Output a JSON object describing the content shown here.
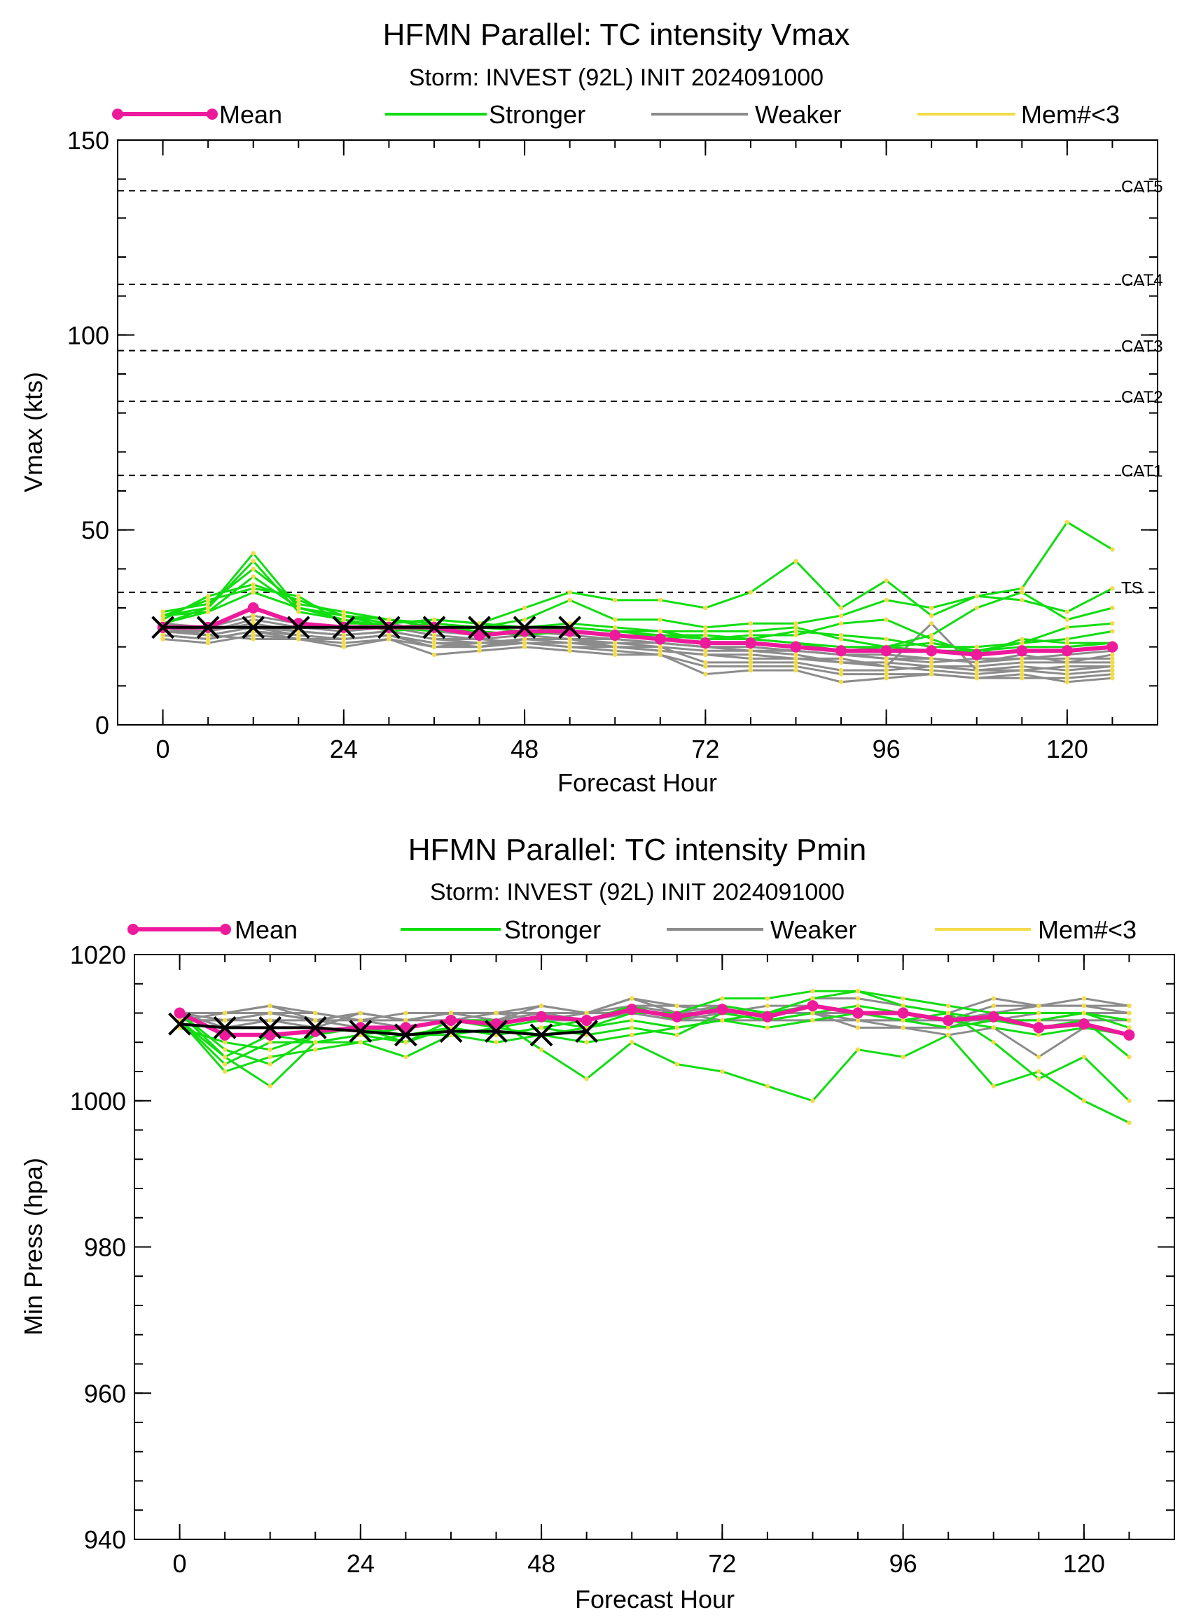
{
  "colors": {
    "mean": "#ee1a9c",
    "stronger": "#11dd11",
    "weaker": "#8c8c8c",
    "mem": "#f2dc4a",
    "observed": "#000000",
    "category_label": "#3355ee"
  },
  "legend": [
    {
      "label": "Mean",
      "style": "mean"
    },
    {
      "label": "Stronger",
      "style": "stronger"
    },
    {
      "label": "Weaker",
      "style": "weaker"
    },
    {
      "label": "Mem#<3",
      "style": "mem"
    }
  ],
  "chart_data": [
    {
      "type": "line",
      "title": "HFMN Parallel: TC intensity Vmax",
      "subtitle": "Storm: INVEST (92L) INIT 2024091000",
      "xlabel": "Forecast Hour",
      "ylabel": "Vmax (kts)",
      "xlim": [
        -6,
        132
      ],
      "ylim": [
        0,
        150
      ],
      "xticks": [
        0,
        24,
        48,
        72,
        96,
        120
      ],
      "yticks": [
        0,
        50,
        100,
        150
      ],
      "ytick_labels": [
        "0",
        "50",
        "100",
        "150"
      ],
      "yminor_step": 10,
      "grid": false,
      "legend_position": "top",
      "thresholds": [
        {
          "label": "CAT5",
          "value": 137
        },
        {
          "label": "CAT4",
          "value": 113
        },
        {
          "label": "CAT3",
          "value": 96
        },
        {
          "label": "CAT2",
          "value": 83
        },
        {
          "label": "CAT1",
          "value": 64
        },
        {
          "label": "TS",
          "value": 34
        }
      ],
      "x": [
        0,
        6,
        12,
        18,
        24,
        30,
        36,
        42,
        48,
        54,
        60,
        66,
        72,
        78,
        84,
        90,
        96,
        102,
        108,
        114,
        120,
        126
      ],
      "series": [
        {
          "name": "Mean",
          "style": "mean",
          "values": [
            25,
            25,
            30,
            26,
            25,
            25,
            25,
            23,
            24,
            24,
            23,
            22,
            21,
            21,
            20,
            19,
            19,
            19,
            18,
            19,
            19,
            20
          ]
        },
        {
          "name": "Observed",
          "style": "observed",
          "x": [
            0,
            6,
            12,
            18,
            24,
            30,
            36,
            42,
            48,
            54
          ],
          "values": [
            25,
            25,
            25,
            25,
            25,
            25,
            25,
            25,
            25,
            25
          ]
        },
        {
          "style": "stronger",
          "values": [
            28,
            30,
            44,
            30,
            28,
            26,
            27,
            26,
            30,
            34,
            32,
            32,
            30,
            34,
            42,
            30,
            37,
            28,
            33,
            35,
            52,
            45
          ]
        },
        {
          "style": "stronger",
          "values": [
            27,
            33,
            36,
            32,
            28,
            27,
            26,
            25,
            27,
            32,
            27,
            27,
            25,
            26,
            26,
            28,
            32,
            30,
            33,
            32,
            29,
            35
          ]
        },
        {
          "style": "stronger",
          "values": [
            26,
            29,
            38,
            30,
            27,
            25,
            24,
            25,
            24,
            25,
            24,
            24,
            24,
            24,
            25,
            22,
            20,
            21,
            19,
            21,
            25,
            26
          ]
        },
        {
          "style": "stronger",
          "values": [
            29,
            31,
            40,
            31,
            29,
            27,
            25,
            24,
            23,
            24,
            23,
            22,
            23,
            22,
            21,
            19,
            20,
            23,
            30,
            34,
            27,
            30
          ]
        },
        {
          "style": "stronger",
          "values": [
            28,
            32,
            35,
            33,
            26,
            26,
            27,
            26,
            25,
            26,
            25,
            24,
            22,
            23,
            23,
            26,
            27,
            22,
            18,
            22,
            21,
            21
          ]
        },
        {
          "style": "stronger",
          "values": [
            26,
            30,
            42,
            29,
            27,
            24,
            25,
            24,
            23,
            25,
            24,
            23,
            23,
            22,
            24,
            23,
            22,
            20,
            20,
            21,
            22,
            24
          ]
        },
        {
          "style": "stronger",
          "values": [
            28,
            29,
            34,
            30,
            28,
            25,
            26,
            25,
            24,
            24,
            23,
            23,
            22,
            22,
            21,
            20,
            20,
            19,
            19,
            20,
            20,
            21
          ]
        },
        {
          "style": "weaker",
          "values": [
            24,
            23,
            22,
            22,
            21,
            22,
            20,
            21,
            22,
            22,
            21,
            21,
            20,
            19,
            19,
            18,
            17,
            17,
            16,
            17,
            18,
            19
          ]
        },
        {
          "style": "weaker",
          "values": [
            23,
            22,
            24,
            22,
            22,
            23,
            21,
            21,
            21,
            21,
            20,
            19,
            18,
            18,
            17,
            16,
            16,
            15,
            15,
            16,
            16,
            16
          ]
        },
        {
          "style": "weaker",
          "values": [
            25,
            23,
            25,
            24,
            23,
            24,
            22,
            22,
            21,
            20,
            20,
            20,
            16,
            16,
            16,
            14,
            14,
            15,
            14,
            14,
            15,
            15
          ]
        },
        {
          "style": "weaker",
          "values": [
            22,
            21,
            23,
            22,
            20,
            22,
            18,
            19,
            20,
            19,
            18,
            18,
            13,
            14,
            14,
            11,
            12,
            13,
            12,
            13,
            11,
            12
          ]
        },
        {
          "style": "weaker",
          "values": [
            23,
            22,
            24,
            23,
            22,
            23,
            20,
            20,
            22,
            22,
            20,
            19,
            18,
            17,
            17,
            17,
            15,
            14,
            13,
            14,
            13,
            14
          ]
        },
        {
          "style": "weaker",
          "values": [
            24,
            24,
            26,
            24,
            23,
            24,
            22,
            21,
            22,
            21,
            21,
            20,
            19,
            19,
            18,
            16,
            15,
            26,
            14,
            15,
            14,
            15
          ]
        },
        {
          "style": "weaker",
          "values": [
            25,
            24,
            27,
            25,
            24,
            25,
            23,
            22,
            23,
            22,
            22,
            21,
            20,
            20,
            19,
            18,
            17,
            16,
            17,
            17,
            17,
            17
          ]
        },
        {
          "style": "weaker",
          "values": [
            26,
            25,
            28,
            26,
            25,
            26,
            24,
            23,
            24,
            23,
            22,
            21,
            20,
            20,
            19,
            18,
            18,
            17,
            16,
            18,
            16,
            18
          ]
        },
        {
          "style": "weaker",
          "values": [
            24,
            23,
            25,
            23,
            22,
            23,
            21,
            20,
            21,
            20,
            19,
            18,
            15,
            15,
            15,
            13,
            13,
            13,
            12,
            12,
            12,
            13
          ]
        }
      ]
    },
    {
      "type": "line",
      "title": "HFMN Parallel: TC intensity Pmin",
      "subtitle": "Storm: INVEST (92L) INIT 2024091000",
      "xlabel": "Forecast Hour",
      "ylabel": "Min Press (hpa)",
      "xlim": [
        -6,
        132
      ],
      "ylim": [
        940,
        1020
      ],
      "xticks": [
        0,
        24,
        48,
        72,
        96,
        120
      ],
      "yticks": [
        940,
        960,
        980,
        1000,
        1020
      ],
      "ytick_labels": [
        "940",
        "960",
        "980",
        "1000",
        "1020"
      ],
      "yminor_step": 4,
      "grid": false,
      "legend_position": "top",
      "thresholds": [],
      "x": [
        0,
        6,
        12,
        18,
        24,
        30,
        36,
        42,
        48,
        54,
        60,
        66,
        72,
        78,
        84,
        90,
        96,
        102,
        108,
        114,
        120,
        126
      ],
      "series": [
        {
          "name": "Mean",
          "style": "mean",
          "values": [
            1012,
            1009,
            1009,
            1009.5,
            1010,
            1010,
            1011,
            1010.5,
            1011.5,
            1011,
            1012.5,
            1011.5,
            1012.5,
            1011.5,
            1013,
            1012,
            1012,
            1011,
            1011.5,
            1010,
            1010.5,
            1009
          ]
        },
        {
          "name": "Observed",
          "style": "observed",
          "x": [
            0,
            6,
            12,
            18,
            24,
            30,
            36,
            42,
            48,
            54
          ],
          "values": [
            1010.5,
            1010,
            1010,
            1010,
            1009.5,
            1009,
            1009.5,
            1009.5,
            1009,
            1009.5
          ]
        },
        {
          "style": "stronger",
          "values": [
            1011,
            1006,
            1002,
            1008,
            1009,
            1008,
            1011,
            1011,
            1007,
            1003,
            1008,
            1005,
            1004,
            1002,
            1000,
            1007,
            1006,
            1009,
            1002,
            1004,
            1000,
            997
          ]
        },
        {
          "style": "stronger",
          "values": [
            1011,
            1004,
            1006,
            1007,
            1008,
            1006,
            1009,
            1008,
            1009,
            1008,
            1009,
            1010,
            1011,
            1010,
            1011,
            1012,
            1011,
            1012,
            1008,
            1003,
            1006,
            1000
          ]
        },
        {
          "style": "stronger",
          "values": [
            1012,
            1007,
            1005,
            1009,
            1010,
            1009,
            1010,
            1009,
            1010,
            1011,
            1013,
            1011,
            1013,
            1012,
            1014,
            1015,
            1013,
            1012,
            1011,
            1010,
            1011,
            1006
          ]
        },
        {
          "style": "stronger",
          "values": [
            1011,
            1005,
            1008,
            1008,
            1009,
            1010,
            1011,
            1010,
            1011,
            1010,
            1012,
            1012,
            1014,
            1014,
            1015,
            1015,
            1014,
            1013,
            1012,
            1012,
            1012,
            1011
          ]
        },
        {
          "style": "stronger",
          "values": [
            1010,
            1008,
            1007,
            1009,
            1010,
            1008,
            1010,
            1009,
            1010,
            1009,
            1010,
            1009,
            1012,
            1011,
            1012,
            1013,
            1012,
            1011,
            1010,
            1009,
            1010,
            1009
          ]
        },
        {
          "style": "stronger",
          "values": [
            1012,
            1006,
            1009,
            1008,
            1008,
            1009,
            1009,
            1010,
            1009,
            1010,
            1011,
            1010,
            1011,
            1012,
            1013,
            1012,
            1011,
            1010,
            1011,
            1011,
            1012,
            1010
          ]
        },
        {
          "style": "weaker",
          "values": [
            1012,
            1012,
            1013,
            1011,
            1012,
            1011,
            1012,
            1012,
            1013,
            1012,
            1014,
            1013,
            1013,
            1012,
            1014,
            1014,
            1013,
            1012,
            1014,
            1013,
            1014,
            1013
          ]
        },
        {
          "style": "weaker",
          "values": [
            1011,
            1011,
            1012,
            1011,
            1011,
            1010,
            1011,
            1011,
            1012,
            1011,
            1013,
            1012,
            1012,
            1011,
            1012,
            1011,
            1011,
            1010,
            1012,
            1012,
            1012,
            1012
          ]
        },
        {
          "style": "weaker",
          "values": [
            1012,
            1010,
            1011,
            1010,
            1012,
            1011,
            1012,
            1012,
            1011,
            1012,
            1014,
            1012,
            1012,
            1013,
            1013,
            1012,
            1012,
            1011,
            1013,
            1013,
            1013,
            1012
          ]
        },
        {
          "style": "weaker",
          "values": [
            1011,
            1011,
            1012,
            1012,
            1011,
            1011,
            1012,
            1011,
            1012,
            1012,
            1012,
            1011,
            1011,
            1011,
            1011,
            1011,
            1010,
            1010,
            1011,
            1011,
            1012,
            1011
          ]
        },
        {
          "style": "weaker",
          "values": [
            1012,
            1011,
            1011,
            1011,
            1012,
            1011,
            1011,
            1012,
            1012,
            1011,
            1013,
            1013,
            1012,
            1012,
            1012,
            1010,
            1010,
            1009,
            1010,
            1006,
            1010,
            1009
          ]
        },
        {
          "style": "weaker",
          "values": [
            1011,
            1012,
            1013,
            1012,
            1011,
            1012,
            1012,
            1011,
            1013,
            1012,
            1014,
            1012,
            1011,
            1012,
            1013,
            1012,
            1012,
            1011,
            1012,
            1013,
            1013,
            1013
          ]
        },
        {
          "style": "weaker",
          "values": [
            1012,
            1012,
            1012,
            1011,
            1012,
            1011,
            1012,
            1012,
            1012,
            1012,
            1013,
            1012,
            1013,
            1012,
            1012,
            1011,
            1011,
            1010,
            1011,
            1012,
            1012,
            1012
          ]
        },
        {
          "style": "weaker",
          "values": [
            1011,
            1011,
            1012,
            1011,
            1010,
            1010,
            1011,
            1011,
            1011,
            1011,
            1012,
            1011,
            1012,
            1011,
            1012,
            1012,
            1011,
            1011,
            1011,
            1011,
            1011,
            1011
          ]
        }
      ]
    }
  ]
}
